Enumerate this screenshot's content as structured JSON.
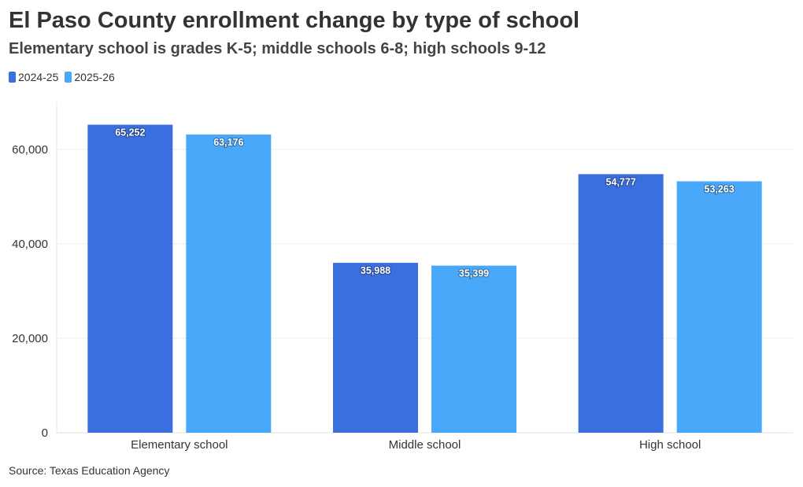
{
  "title": "El Paso County enrollment change by type of school",
  "subtitle": "Elementary school is grades K-5; middle schools 6-8; high schools 9-12",
  "source": "Source: Texas Education Agency",
  "colors": {
    "series_0": "#3a6fe0",
    "series_1": "#4aa8fb",
    "grid": "#eeeeee",
    "axis_text": "#333333"
  },
  "chart_data": {
    "type": "bar",
    "categories": [
      "Elementary school",
      "Middle school",
      "High school"
    ],
    "series": [
      {
        "name": "2024-25",
        "values": [
          65252,
          35988,
          54777
        ],
        "labels": [
          "65,252",
          "35,988",
          "54,777"
        ]
      },
      {
        "name": "2025-26",
        "values": [
          63176,
          35399,
          53263
        ],
        "labels": [
          "63,176",
          "35,399",
          "53,263"
        ]
      }
    ],
    "y_ticks": [
      0,
      20000,
      40000,
      60000
    ],
    "y_tick_labels": [
      "0",
      "20,000",
      "40,000",
      "60,000"
    ],
    "ylim": [
      0,
      70000
    ],
    "legend_position": "top-left",
    "grid": true
  }
}
